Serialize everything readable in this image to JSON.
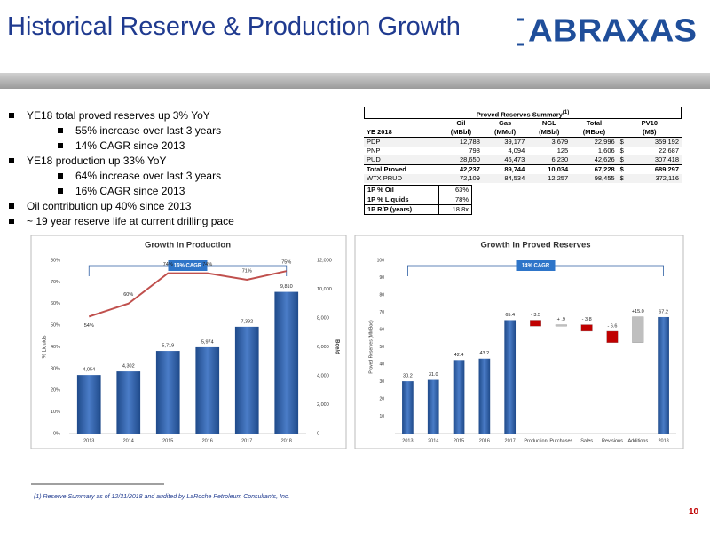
{
  "header": {
    "title": "Historical Reserve & Production Growth",
    "logo": "ABRAXAS"
  },
  "bullets": [
    {
      "text": "YE18 total proved reserves up 3% YoY",
      "level": 1
    },
    {
      "text": "55% increase over last 3 years",
      "level": 2
    },
    {
      "text": "14% CAGR since 2013",
      "level": 2
    },
    {
      "text": "YE18 production up 33% YoY",
      "level": 1
    },
    {
      "text": "64% increase over last 3 years",
      "level": 2
    },
    {
      "text": "16% CAGR since 2013",
      "level": 2
    },
    {
      "text": "Oil contribution up 40% since 2013",
      "level": 1
    },
    {
      "text": "~ 19 year reserve life at current drilling pace",
      "level": 1
    }
  ],
  "table": {
    "title": "Proved Reserves Summary",
    "title_note": "(1)",
    "row_header_label": "YE 2018",
    "currency": "$",
    "columns": [
      {
        "top": "Oil",
        "bottom": "(MBbl)"
      },
      {
        "top": "Gas",
        "bottom": "(MMcf)"
      },
      {
        "top": "NGL",
        "bottom": "(MBbl)"
      },
      {
        "top": "Total",
        "bottom": "(MBoe)"
      },
      {
        "top": "PV10",
        "bottom": "(M$)"
      }
    ],
    "rows": [
      {
        "label": "PDP",
        "cells": [
          "12,788",
          "39,177",
          "3,679",
          "22,996",
          "359,192"
        ]
      },
      {
        "label": "PNP",
        "cells": [
          "798",
          "4,094",
          "125",
          "1,606",
          "22,687"
        ]
      },
      {
        "label": "PUD",
        "cells": [
          "28,650",
          "46,473",
          "6,230",
          "42,626",
          "307,418"
        ]
      },
      {
        "label": "Total Proved",
        "cells": [
          "42,237",
          "89,744",
          "10,034",
          "67,228",
          "689,297"
        ],
        "bold": true
      },
      {
        "label": "WTX PRUD",
        "cells": [
          "72,109",
          "84,534",
          "12,257",
          "98,455",
          "372,116"
        ]
      }
    ],
    "summary": [
      {
        "label": "1P % Oil",
        "value": "63%"
      },
      {
        "label": "1P % Liquids",
        "value": "78%"
      },
      {
        "label": "1P R/P (years)",
        "value": "18.8x"
      }
    ]
  },
  "chart_data": [
    {
      "type": "combo",
      "title": "Growth in Production",
      "categories": [
        "2013",
        "2014",
        "2015",
        "2016",
        "2017",
        "2018"
      ],
      "ylabel": "% Liquids",
      "y2label": "Boe/d",
      "annotation": "16% CAGR",
      "ylim": [
        0,
        80
      ],
      "yticks": [
        {
          "value": 0,
          "label": "0%"
        },
        {
          "value": 10,
          "label": "10%"
        },
        {
          "value": 20,
          "label": "20%"
        },
        {
          "value": 30,
          "label": "30%"
        },
        {
          "value": 40,
          "label": "40%"
        },
        {
          "value": 50,
          "label": "50%"
        },
        {
          "value": 60,
          "label": "60%"
        },
        {
          "value": 70,
          "label": "70%"
        },
        {
          "value": 80,
          "label": "80%"
        }
      ],
      "y2lim": [
        0,
        12000
      ],
      "y2ticks": [
        0,
        {
          "value": 2000,
          "label": "2,000"
        },
        {
          "value": 4000,
          "label": "4,000"
        },
        {
          "value": 6000,
          "label": "6,000"
        },
        {
          "value": 8000,
          "label": "8,000"
        },
        {
          "value": 10000,
          "label": "10,000"
        },
        {
          "value": 12000,
          "label": "12,000"
        }
      ],
      "series": [
        {
          "type": "bar",
          "axis": "y2",
          "color": "#2e5fa3",
          "values": [
            4054,
            4302,
            5719,
            5974,
            7392,
            9810
          ],
          "value_labels": [
            "4,054",
            "4,302",
            "5,719",
            "5,974",
            "7,392",
            "9,810"
          ]
        },
        {
          "type": "line",
          "color": "#c0504d",
          "values": [
            54,
            60,
            74,
            74,
            71,
            75
          ],
          "value_labels": [
            "54%",
            "60%",
            "74%",
            "74%",
            "71%",
            "75%"
          ]
        }
      ]
    },
    {
      "type": "waterfall",
      "title": "Growth in Proved Reserves",
      "categories": [
        "2013",
        "2014",
        "2015",
        "2016",
        "2017",
        "Production",
        "Purchases",
        "Sales",
        "Revisions",
        "Additions",
        "2018"
      ],
      "values": [
        30.2,
        31.0,
        42.4,
        43.2,
        65.4,
        -3.5,
        0.9,
        -3.8,
        -6.6,
        15.0,
        67.2
      ],
      "value_labels": [
        "30.2",
        "31.0",
        "42.4",
        "43.2",
        "65.4",
        "- 3.5",
        "+ .9",
        "- 3.8",
        "- 6.6",
        "+15.0",
        "67.2"
      ],
      "measures": [
        "absolute",
        "absolute",
        "absolute",
        "absolute",
        "absolute",
        "relative",
        "relative",
        "relative",
        "relative",
        "relative",
        "absolute"
      ],
      "colors": {
        "total": "#2e5fa3",
        "increase": "#bfbfbf",
        "decrease": "#c00000"
      },
      "ylabel": "Proved Reserves (MMBoe)",
      "annotation": "14% CAGR",
      "ylim": [
        0,
        100
      ],
      "yticks": [
        {
          "value": 0,
          "label": "-"
        },
        10,
        20,
        30,
        40,
        50,
        60,
        70,
        80,
        90,
        100
      ]
    }
  ],
  "footnote": "(1) Reserve Summary as of 12/31/2018 and audited by LaRoche Petroleum Consultants, Inc.",
  "page_number": "10"
}
